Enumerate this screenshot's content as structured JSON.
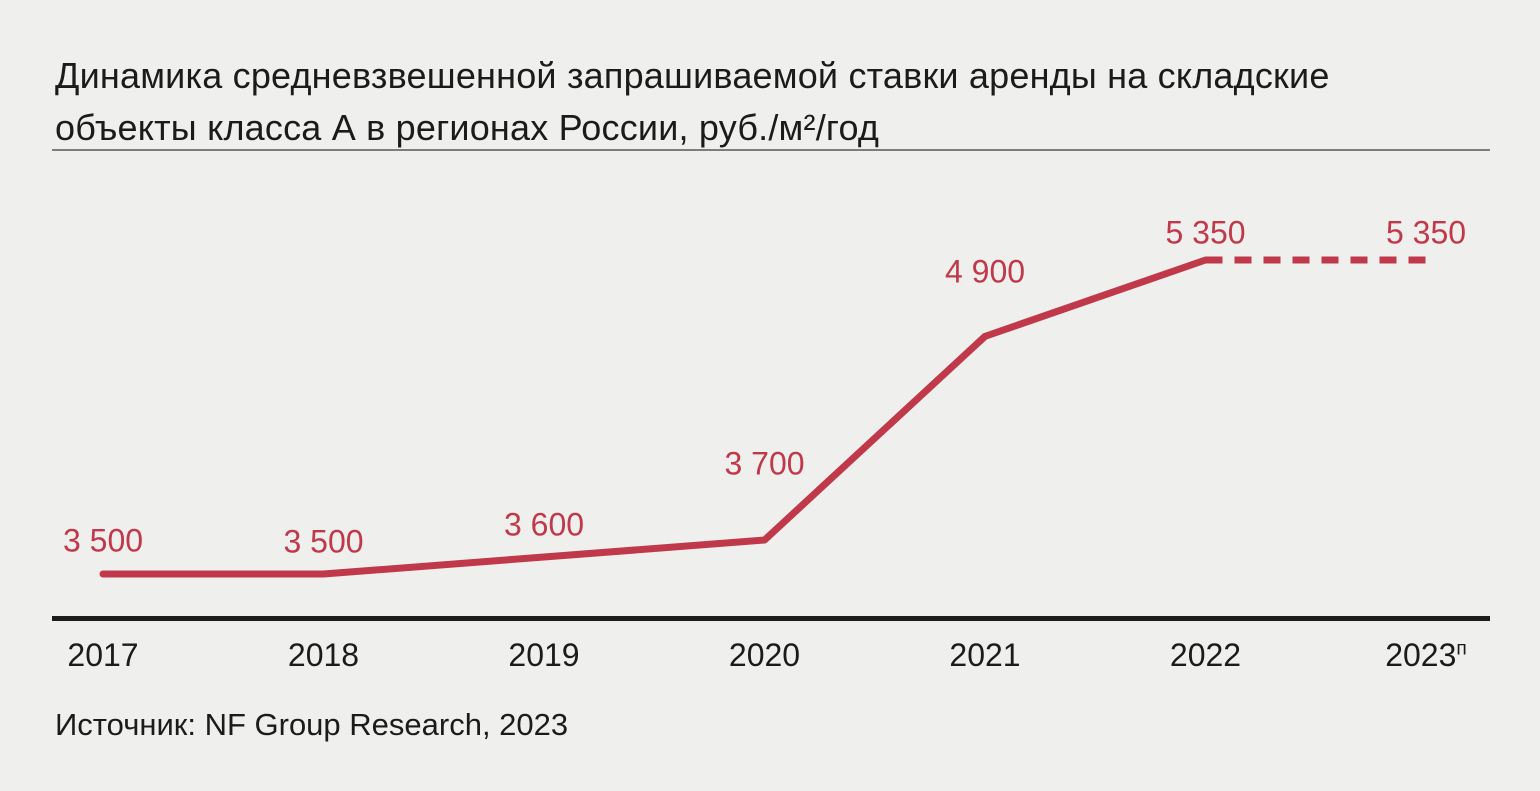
{
  "title": "Динамика средневзвешенной запрашиваемой ставки аренды на складские\nобъекты класса А в регионах России, руб./м²/год",
  "source": "Источник: NF Group Research, 2023",
  "colors": {
    "background": "#efefed",
    "text": "#1b1b1b",
    "line": "#c0394b",
    "value_labels": "#c0394b",
    "axis": "#1c1c1c",
    "divider": "#7d7d7d"
  },
  "chart_data": {
    "type": "line",
    "title": "Динамика средневзвешенной запрашиваемой ставки аренды на складские объекты класса А в регионах России, руб./м²/год",
    "categories": [
      "2017",
      "2018",
      "2019",
      "2020",
      "2021",
      "2022",
      "2023"
    ],
    "tick_superscripts": [
      "",
      "",
      "",
      "",
      "",
      "",
      "п"
    ],
    "values": [
      3500,
      3500,
      3600,
      3700,
      4900,
      5350,
      5350
    ],
    "value_labels": [
      "3 500",
      "3 500",
      "3 600",
      "3 700",
      "4 900",
      "5 350",
      "5 350"
    ],
    "xlabel": "",
    "ylabel": "руб./м²/год",
    "ylim": [
      3350,
      5800
    ],
    "grid": false,
    "legend": false,
    "dashed_from_index": 5
  }
}
